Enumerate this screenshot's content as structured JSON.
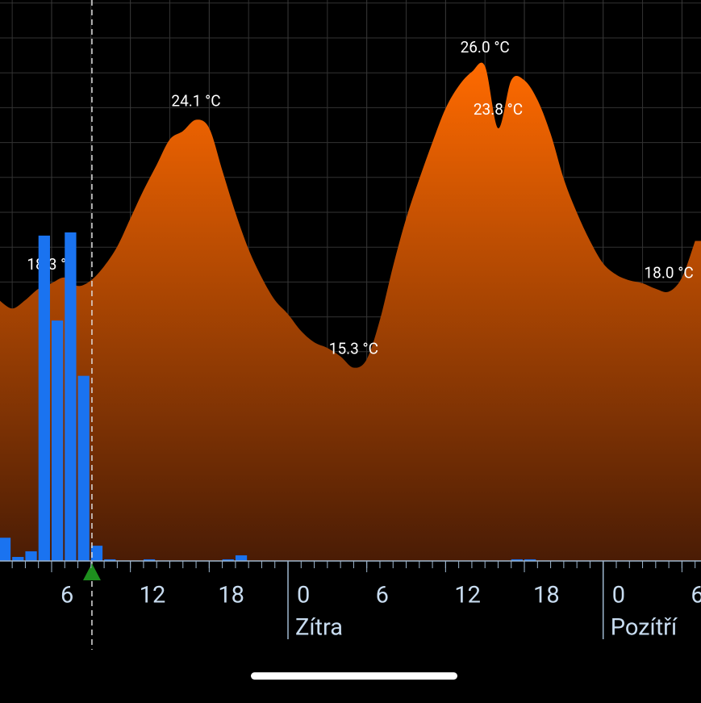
{
  "chart_data": {
    "type": "area",
    "xlim": [
      2.07,
      55.45
    ],
    "ylim": [
      8.44,
      28.35
    ],
    "y2lim": [
      0,
      7
    ],
    "xticks": [
      {
        "value": 6,
        "label": "6"
      },
      {
        "value": 12,
        "label": "12"
      },
      {
        "value": 18,
        "label": "18"
      },
      {
        "value": 24,
        "label": "0"
      },
      {
        "value": 30,
        "label": "6"
      },
      {
        "value": 36,
        "label": "12"
      },
      {
        "value": 42,
        "label": "18"
      },
      {
        "value": 48,
        "label": "0"
      },
      {
        "value": 54,
        "label": "6"
      }
    ],
    "day_labels": [
      {
        "value": 24,
        "label": "Zítra"
      },
      {
        "value": 48,
        "label": "Pozítří"
      }
    ],
    "current_time": 9.07,
    "grid": true,
    "series": [
      {
        "type": "area",
        "color": "#ff6a00",
        "x": [
          2,
          3,
          4,
          5,
          6,
          7,
          8,
          9,
          10,
          11,
          12,
          13,
          14,
          15,
          16,
          17,
          18,
          19,
          20,
          21,
          22,
          23,
          24,
          25,
          26,
          27,
          28,
          29,
          30,
          31,
          32,
          33,
          34,
          35,
          36,
          37,
          38,
          39,
          40,
          41,
          42,
          43,
          44,
          45,
          46,
          47,
          48,
          49,
          50,
          51,
          52,
          53,
          54,
          55
        ],
        "values": [
          17.7,
          17.4,
          17.7,
          18.1,
          18.3,
          18.5,
          18.2,
          18.4,
          18.9,
          19.6,
          20.6,
          21.6,
          22.5,
          23.4,
          23.7,
          24.1,
          23.8,
          22.3,
          20.8,
          19.5,
          18.5,
          17.7,
          17.2,
          16.6,
          16.2,
          16.0,
          15.7,
          15.3,
          15.6,
          17.0,
          18.9,
          20.6,
          22.0,
          23.3,
          24.5,
          25.3,
          25.8,
          26.0,
          23.8,
          25.5,
          25.5,
          24.8,
          23.6,
          22.0,
          20.8,
          19.8,
          19.0,
          18.6,
          18.4,
          18.3,
          18.1,
          18.0,
          18.5,
          19.8
        ],
        "value_labels": [
          null,
          null,
          null,
          null,
          "18.3 °C",
          null,
          null,
          null,
          null,
          null,
          null,
          null,
          null,
          null,
          null,
          "24.1 °C",
          null,
          null,
          null,
          null,
          null,
          null,
          null,
          null,
          null,
          null,
          null,
          "15.3 °C",
          null,
          null,
          null,
          null,
          null,
          null,
          null,
          null,
          null,
          "26.0 °C",
          "23.8 °C",
          null,
          null,
          null,
          null,
          null,
          null,
          null,
          null,
          null,
          null,
          null,
          null,
          "18.0 °C",
          null,
          null
        ]
      },
      {
        "type": "bar",
        "axis": "y2",
        "color": "#1a73f0",
        "x": [
          2,
          3,
          4,
          5,
          6,
          7,
          8,
          9,
          10,
          13,
          19,
          20,
          41,
          42
        ],
        "values": [
          0.29,
          0.05,
          0.12,
          4.06,
          3.0,
          4.1,
          2.31,
          0.19,
          0.02,
          0.02,
          0.02,
          0.07,
          0.02,
          0.02
        ]
      }
    ]
  }
}
